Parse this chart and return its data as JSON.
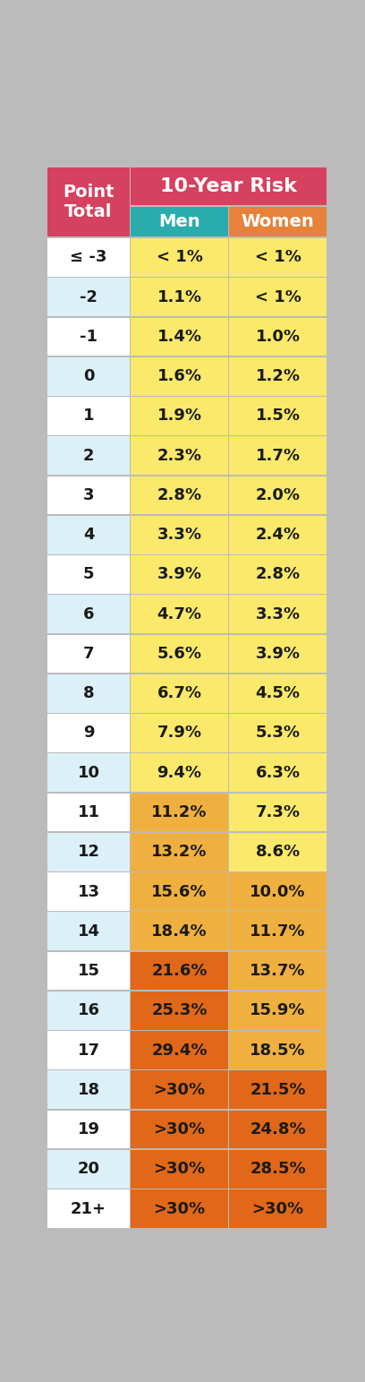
{
  "title_header": "10-Year Risk",
  "col1_header": "Point\nTotal",
  "col2_header": "Men",
  "col3_header": "Women",
  "rows": [
    [
      "≤ -3",
      "< 1%",
      "< 1%"
    ],
    [
      "-2",
      "1.1%",
      "< 1%"
    ],
    [
      "-1",
      "1.4%",
      "1.0%"
    ],
    [
      "0",
      "1.6%",
      "1.2%"
    ],
    [
      "1",
      "1.9%",
      "1.5%"
    ],
    [
      "2",
      "2.3%",
      "1.7%"
    ],
    [
      "3",
      "2.8%",
      "2.0%"
    ],
    [
      "4",
      "3.3%",
      "2.4%"
    ],
    [
      "5",
      "3.9%",
      "2.8%"
    ],
    [
      "6",
      "4.7%",
      "3.3%"
    ],
    [
      "7",
      "5.6%",
      "3.9%"
    ],
    [
      "8",
      "6.7%",
      "4.5%"
    ],
    [
      "9",
      "7.9%",
      "5.3%"
    ],
    [
      "10",
      "9.4%",
      "6.3%"
    ],
    [
      "11",
      "11.2%",
      "7.3%"
    ],
    [
      "12",
      "13.2%",
      "8.6%"
    ],
    [
      "13",
      "15.6%",
      "10.0%"
    ],
    [
      "14",
      "18.4%",
      "11.7%"
    ],
    [
      "15",
      "21.6%",
      "13.7%"
    ],
    [
      "16",
      "25.3%",
      "15.9%"
    ],
    [
      "17",
      "29.4%",
      "18.5%"
    ],
    [
      "18",
      ">30%",
      "21.5%"
    ],
    [
      "19",
      ">30%",
      "24.8%"
    ],
    [
      "20",
      ">30%",
      "28.5%"
    ],
    [
      "21+",
      ">30%",
      ">30%"
    ]
  ],
  "header_bg": "#D6415F",
  "men_header_bg": "#2AACAC",
  "women_header_bg": "#E8823A",
  "header_text_color": "#FFFFFF",
  "col1_white_color": "#FFFFFF",
  "col1_blue_color": "#DCF0F7",
  "yellow_color": "#FAE96A",
  "orange_light_color": "#F0B040",
  "orange_dark_color": "#E06818",
  "men_yellow_rows": [
    0,
    1,
    2,
    3,
    4,
    5,
    6,
    7,
    8,
    9,
    10,
    11,
    12,
    13
  ],
  "men_orange_light_rows": [
    14,
    15,
    16,
    17
  ],
  "men_orange_dark_rows": [
    18,
    19,
    20,
    21,
    22,
    23,
    24
  ],
  "women_yellow_rows": [
    0,
    1,
    2,
    3,
    4,
    5,
    6,
    7,
    8,
    9,
    10,
    11,
    12,
    13,
    14,
    15
  ],
  "women_orange_light_rows": [
    16,
    17,
    18,
    19,
    20
  ],
  "women_orange_dark_rows": [
    21,
    22,
    23,
    24
  ],
  "border_color": "#BBBBBB",
  "fig_bg": "#BBBBBB"
}
